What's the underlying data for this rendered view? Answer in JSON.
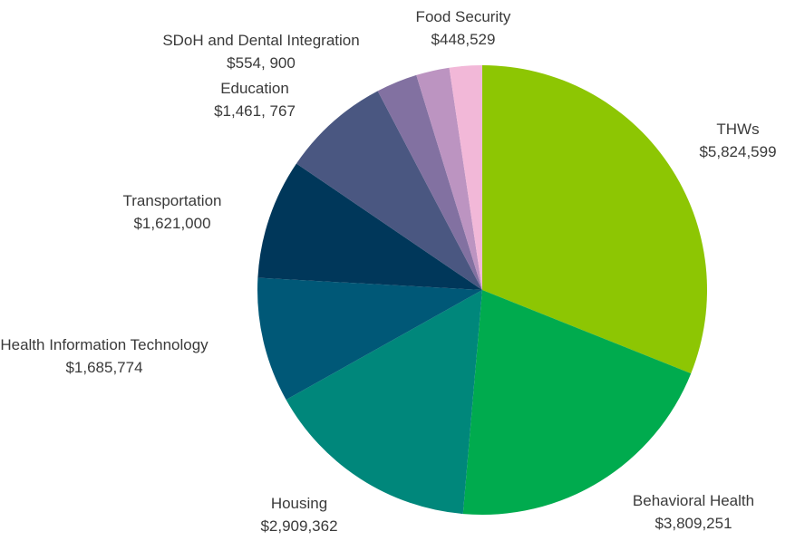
{
  "chart_data": {
    "type": "pie",
    "title": "",
    "slices": [
      {
        "label": "THWs",
        "value_text": "$5,824,599",
        "value": 5824599,
        "color": "#8dc603"
      },
      {
        "label": "Behavioral Health",
        "value_text": "$3,809,251",
        "value": 3809251,
        "color": "#00ab4e"
      },
      {
        "label": "Housing",
        "value_text": "$2,909,362",
        "value": 2909362,
        "color": "#00877b"
      },
      {
        "label": "Health Information Technology",
        "value_text": "$1,685,774",
        "value": 1685774,
        "color": "#005877"
      },
      {
        "label": "Transportation",
        "value_text": "$1,621,000",
        "value": 1621000,
        "color": "#00375a"
      },
      {
        "label": "Education",
        "value_text": "$1,461, 767",
        "value": 1461767,
        "color": "#4a5781"
      },
      {
        "label": "SDoH and Dental Integration",
        "value_text": "$554, 900",
        "value": 554900,
        "color": "#8271a1"
      },
      {
        "label": "Food Security",
        "value_text": "$448,529",
        "value": 448529,
        "color": "#bc94c1"
      },
      {
        "label": "",
        "value_text": "",
        "value": 440000,
        "color": "#f2b8d8"
      }
    ]
  }
}
